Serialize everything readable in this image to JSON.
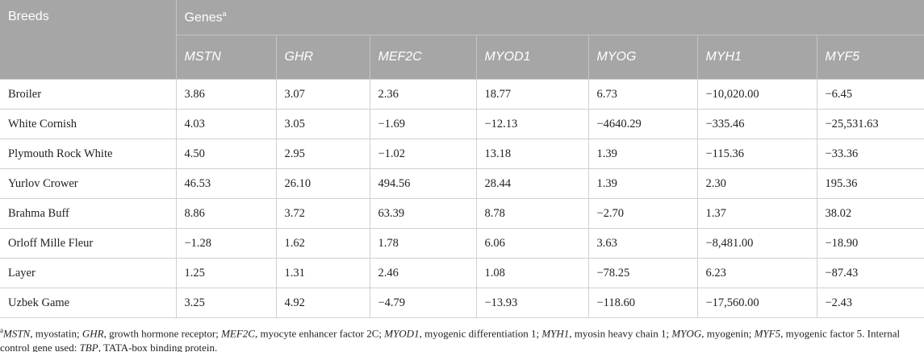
{
  "table": {
    "header": {
      "first": "Breeds",
      "group": "Genes",
      "marker": "a",
      "genes": [
        "MSTN",
        "GHR",
        "MEF2C",
        "MYOD1",
        "MYOG",
        "MYH1",
        "MYF5"
      ]
    },
    "rows": [
      [
        "Broiler",
        "3.86",
        "3.07",
        "2.36",
        "18.77",
        "6.73",
        "−10,020.00",
        "−6.45"
      ],
      [
        "White Cornish",
        "4.03",
        "3.05",
        "−1.69",
        "−12.13",
        "−4640.29",
        "−335.46",
        "−25,531.63"
      ],
      [
        "Plymouth Rock White",
        "4.50",
        "2.95",
        "−1.02",
        "13.18",
        "1.39",
        "−115.36",
        "−33.36"
      ],
      [
        "Yurlov Crower",
        "46.53",
        "26.10",
        "494.56",
        "28.44",
        "1.39",
        "2.30",
        "195.36"
      ],
      [
        "Brahma Buff",
        "8.86",
        "3.72",
        "63.39",
        "8.78",
        "−2.70",
        "1.37",
        "38.02"
      ],
      [
        "Orloff Mille Fleur",
        "−1.28",
        "1.62",
        "1.78",
        "6.06",
        "3.63",
        "−8,481.00",
        "−18.90"
      ],
      [
        "Layer",
        "1.25",
        "1.31",
        "2.46",
        "1.08",
        "−78.25",
        "6.23",
        "−87.43"
      ],
      [
        "Uzbek Game",
        "3.25",
        "4.92",
        "−4.79",
        "−13.93",
        "−118.60",
        "−17,560.00",
        "−2.43"
      ]
    ]
  },
  "footnote": [
    {
      "text": "MSTN",
      "italic": true
    },
    {
      "text": ", myostatin; ",
      "italic": false
    },
    {
      "text": "GHR",
      "italic": true
    },
    {
      "text": ", growth hormone receptor; ",
      "italic": false
    },
    {
      "text": "MEF2C",
      "italic": true
    },
    {
      "text": ", myocyte enhancer factor 2C; ",
      "italic": false
    },
    {
      "text": "MYOD1",
      "italic": true
    },
    {
      "text": ", myogenic differentiation 1; ",
      "italic": false
    },
    {
      "text": "MYH1",
      "italic": true
    },
    {
      "text": ", myosin heavy chain 1; ",
      "italic": false
    },
    {
      "text": "MYOG",
      "italic": true
    },
    {
      "text": ", myogenin; ",
      "italic": false
    },
    {
      "text": "MYF5",
      "italic": true
    },
    {
      "text": ", myogenic factor 5. Internal control gene used: ",
      "italic": false
    },
    {
      "text": "TBP",
      "italic": true
    },
    {
      "text": ", TATA-box binding protein.",
      "italic": false
    }
  ]
}
